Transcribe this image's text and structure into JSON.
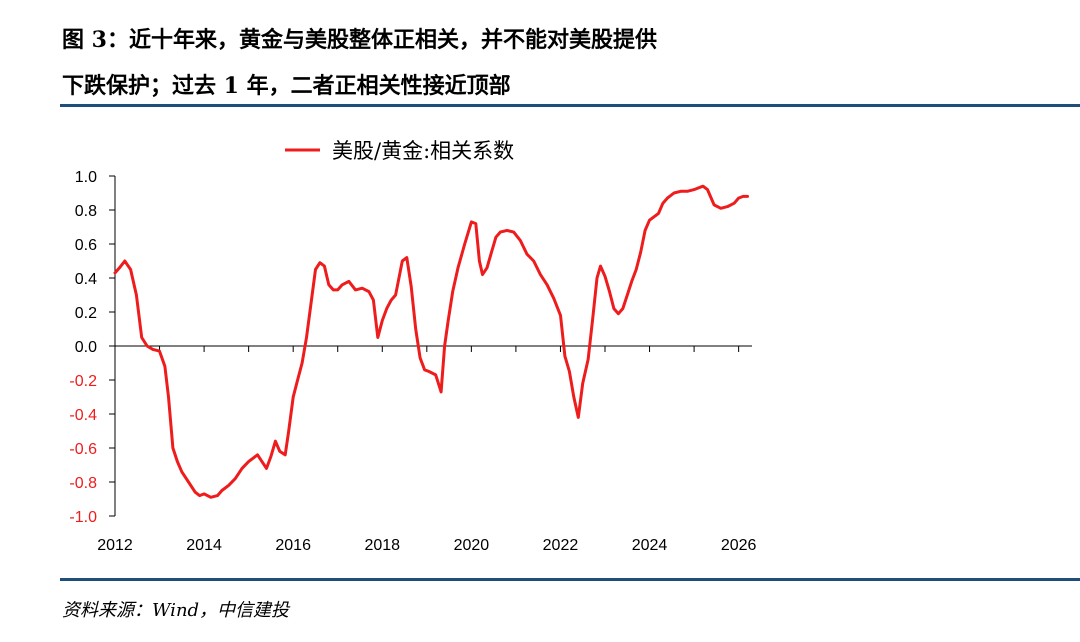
{
  "header": {
    "title_line1": "图 3：近十年来，黄金与美股整体正相关，并不能对美股提供",
    "title_line2": "下跌保护；过去 1 年，二者正相关性接近顶部"
  },
  "footer": {
    "source": "资料来源：Wind，中信建投"
  },
  "chart_data": {
    "type": "line",
    "title": "",
    "xlabel": "",
    "ylabel": "",
    "xlim": [
      2012,
      2026.3
    ],
    "ylim": [
      -1.0,
      1.0
    ],
    "x_ticks": [
      "2012",
      "2014",
      "2016",
      "2018",
      "2020",
      "2022",
      "2024",
      "2026"
    ],
    "y_ticks": [
      "1.0",
      "0.8",
      "0.6",
      "0.4",
      "0.2",
      "0.0",
      "-0.2",
      "-0.4",
      "-0.6",
      "-0.8",
      "-1.0"
    ],
    "grid": false,
    "legend": "top-center",
    "colors": {
      "series": "#ee1c1c",
      "axis": "#000000",
      "rule": "#1f4e79"
    },
    "series": [
      {
        "name": "美股/黄金:相关系数",
        "x": [
          2012.0,
          2012.1,
          2012.22,
          2012.35,
          2012.48,
          2012.6,
          2012.72,
          2012.85,
          2013.0,
          2013.12,
          2013.2,
          2013.3,
          2013.4,
          2013.5,
          2013.65,
          2013.8,
          2013.9,
          2014.0,
          2014.15,
          2014.3,
          2014.4,
          2014.55,
          2014.7,
          2014.85,
          2015.0,
          2015.2,
          2015.4,
          2015.5,
          2015.6,
          2015.7,
          2015.82,
          2015.9,
          2016.0,
          2016.1,
          2016.2,
          2016.3,
          2016.4,
          2016.5,
          2016.6,
          2016.7,
          2016.8,
          2016.9,
          2017.0,
          2017.1,
          2017.25,
          2017.4,
          2017.55,
          2017.7,
          2017.8,
          2017.9,
          2018.0,
          2018.1,
          2018.2,
          2018.3,
          2018.45,
          2018.55,
          2018.65,
          2018.75,
          2018.85,
          2018.95,
          2019.05,
          2019.2,
          2019.32,
          2019.4,
          2019.48,
          2019.58,
          2019.7,
          2019.85,
          2020.0,
          2020.1,
          2020.18,
          2020.25,
          2020.35,
          2020.45,
          2020.55,
          2020.65,
          2020.8,
          2020.95,
          2021.1,
          2021.25,
          2021.4,
          2021.55,
          2021.7,
          2021.85,
          2022.0,
          2022.1,
          2022.2,
          2022.3,
          2022.4,
          2022.5,
          2022.62,
          2022.72,
          2022.82,
          2022.9,
          2023.0,
          2023.1,
          2023.2,
          2023.3,
          2023.4,
          2023.5,
          2023.6,
          2023.7,
          2023.8,
          2023.9,
          2024.0,
          2024.1,
          2024.2,
          2024.3,
          2024.4,
          2024.55,
          2024.7,
          2024.85,
          2025.0,
          2025.1,
          2025.2,
          2025.3,
          2025.45,
          2025.6,
          2025.75,
          2025.9,
          2026.0,
          2026.1,
          2026.2
        ],
        "y": [
          0.43,
          0.46,
          0.5,
          0.45,
          0.3,
          0.05,
          0.0,
          -0.02,
          -0.03,
          -0.12,
          -0.3,
          -0.6,
          -0.68,
          -0.74,
          -0.8,
          -0.86,
          -0.88,
          -0.87,
          -0.89,
          -0.88,
          -0.85,
          -0.82,
          -0.78,
          -0.72,
          -0.68,
          -0.64,
          -0.72,
          -0.65,
          -0.56,
          -0.62,
          -0.64,
          -0.5,
          -0.3,
          -0.2,
          -0.1,
          0.05,
          0.25,
          0.45,
          0.49,
          0.47,
          0.36,
          0.33,
          0.33,
          0.36,
          0.38,
          0.33,
          0.34,
          0.32,
          0.27,
          0.05,
          0.15,
          0.22,
          0.27,
          0.3,
          0.5,
          0.52,
          0.35,
          0.1,
          -0.07,
          -0.14,
          -0.15,
          -0.17,
          -0.27,
          0.0,
          0.15,
          0.32,
          0.46,
          0.6,
          0.73,
          0.72,
          0.5,
          0.42,
          0.46,
          0.55,
          0.64,
          0.67,
          0.68,
          0.67,
          0.62,
          0.54,
          0.5,
          0.42,
          0.36,
          0.28,
          0.18,
          -0.06,
          -0.15,
          -0.3,
          -0.42,
          -0.22,
          -0.08,
          0.15,
          0.4,
          0.47,
          0.41,
          0.32,
          0.22,
          0.19,
          0.22,
          0.3,
          0.38,
          0.45,
          0.55,
          0.68,
          0.74,
          0.76,
          0.78,
          0.84,
          0.87,
          0.9,
          0.91,
          0.91,
          0.92,
          0.93,
          0.94,
          0.92,
          0.83,
          0.81,
          0.82,
          0.84,
          0.87,
          0.88,
          0.88
        ]
      }
    ]
  }
}
